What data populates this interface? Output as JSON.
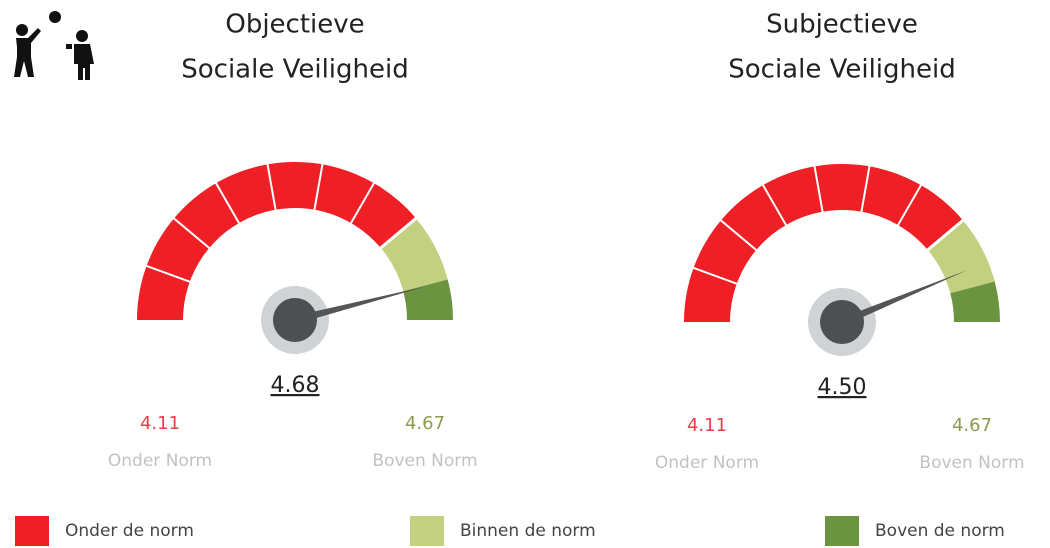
{
  "chart_data": [
    {
      "type": "gauge",
      "title": [
        "Objectieve",
        "Sociale Veiligheid"
      ],
      "value": 4.68,
      "range": [
        1,
        5
      ],
      "bands": [
        {
          "name": "Onder Norm",
          "value": 4.11,
          "color": "#e5404a"
        },
        {
          "name": "Boven Norm",
          "value": 4.67,
          "color": "#8c9c4f"
        }
      ],
      "colors": [
        "#ee1f25",
        "#c3d07f",
        "#6b9440"
      ]
    },
    {
      "type": "gauge",
      "title": [
        "Subjectieve",
        "Sociale Veiligheid"
      ],
      "value": 4.5,
      "value_label": "4.50",
      "range": [
        1,
        5
      ],
      "bands": [
        {
          "name": "Onder Norm",
          "value": 4.11,
          "color": "#e5404a"
        },
        {
          "name": "Boven Norm",
          "value": 4.67,
          "color": "#8c9c4f"
        }
      ],
      "colors": [
        "#ee1f25",
        "#c3d07f",
        "#6b9440"
      ]
    }
  ],
  "legend": [
    {
      "name": "Onder de norm",
      "color": "#ee1f25"
    },
    {
      "name": "Binnen de norm",
      "color": "#c3d07f"
    },
    {
      "name": "Boven de norm",
      "color": "#6b9440"
    }
  ]
}
